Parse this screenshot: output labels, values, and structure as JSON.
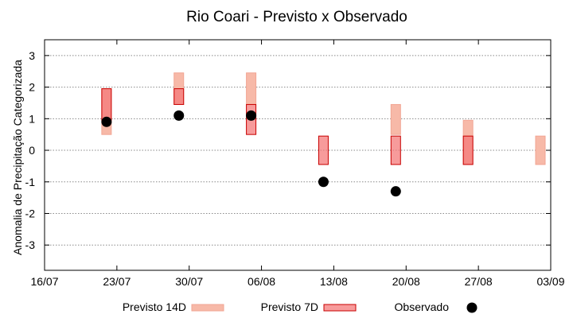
{
  "chart_data": {
    "type": "bar",
    "title": "Rio Coari - Previsto x Observado",
    "xlabel": "",
    "ylabel": "Anomalia de Precipitação Categorizada",
    "ylim": [
      -3.8,
      3.5
    ],
    "yticks": [
      3,
      2,
      1,
      0,
      -1,
      -2,
      -3
    ],
    "x_tick_labels": [
      "16/07",
      "23/07",
      "30/07",
      "06/08",
      "13/08",
      "20/08",
      "27/08",
      "03/09"
    ],
    "grid": true,
    "legend_position": "bottom",
    "series": [
      {
        "name": "Previsto 14D",
        "color": "#f7b9a8",
        "ranges": [
          {
            "x": "2021-07-22",
            "low": 0.5,
            "high": 1.95
          },
          {
            "x": "2021-07-29",
            "low": 1.45,
            "high": 2.45
          },
          {
            "x": "2021-08-05",
            "low": 1.45,
            "high": 2.45
          },
          {
            "x": "2021-08-19",
            "low": 0.5,
            "high": 1.45
          },
          {
            "x": "2021-08-26",
            "low": -0.45,
            "high": 0.95
          },
          {
            "x": "2021-09-02",
            "low": -0.45,
            "high": 0.45
          }
        ]
      },
      {
        "name": "Previsto 7D",
        "color": "#f47a7a",
        "ranges": [
          {
            "x": "2021-07-22",
            "low": 0.95,
            "high": 1.95
          },
          {
            "x": "2021-07-29",
            "low": 1.45,
            "high": 1.95
          },
          {
            "x": "2021-08-05",
            "low": 0.5,
            "high": 1.45
          },
          {
            "x": "2021-08-12",
            "low": -0.45,
            "high": 0.45
          },
          {
            "x": "2021-08-19",
            "low": -0.45,
            "high": 0.45
          },
          {
            "x": "2021-08-26",
            "low": -0.45,
            "high": 0.45
          }
        ]
      },
      {
        "name": "Observado",
        "color": "#000000",
        "points": [
          {
            "x": "2021-07-22",
            "y": 0.9
          },
          {
            "x": "2021-07-29",
            "y": 1.1
          },
          {
            "x": "2021-08-05",
            "y": 1.1
          },
          {
            "x": "2021-08-12",
            "y": -1.0
          },
          {
            "x": "2021-08-19",
            "y": -1.3
          }
        ]
      }
    ]
  }
}
